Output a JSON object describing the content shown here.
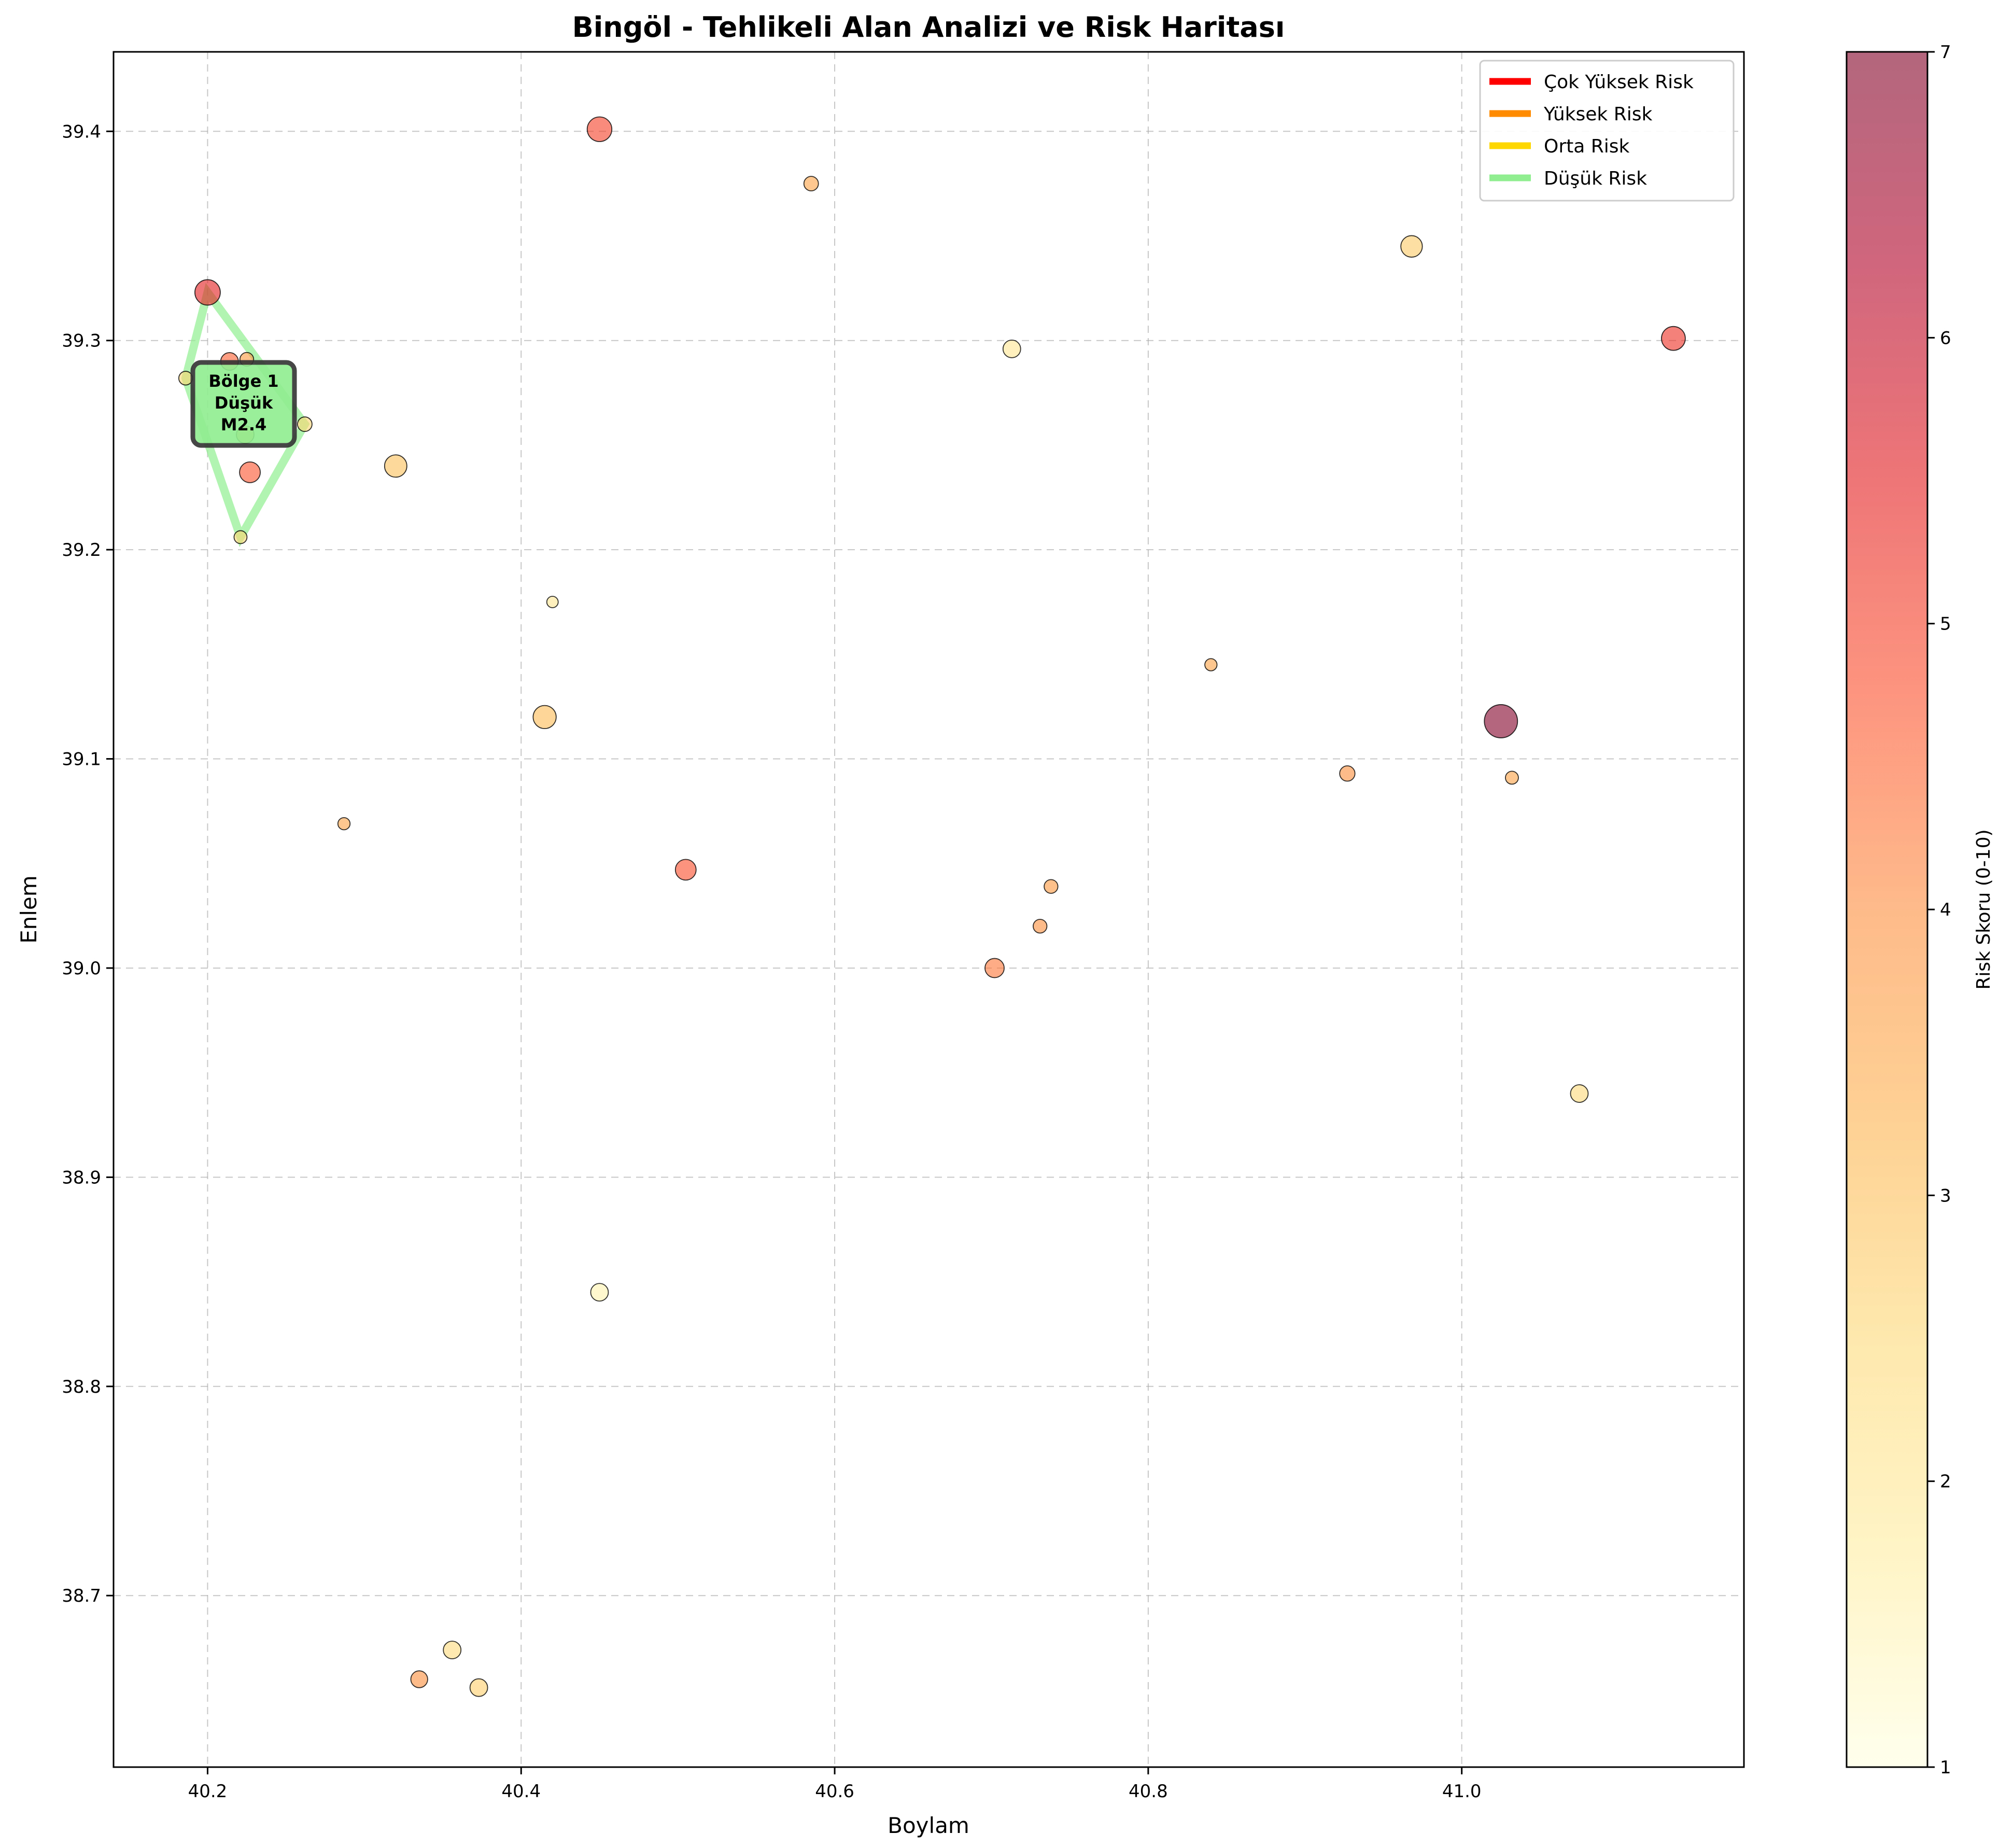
{
  "chart_data": {
    "type": "scatter",
    "title": "Bingöl - Tehlikeli Alan Analizi ve Risk Haritası",
    "xlabel": "Boylam",
    "ylabel": "Enlem",
    "xlim": [
      40.14,
      41.18
    ],
    "ylim": [
      38.618,
      39.438
    ],
    "xticks": [
      "40.2",
      "40.4",
      "40.6",
      "40.8",
      "41.0"
    ],
    "yticks": [
      "38.7",
      "38.8",
      "38.9",
      "39.0",
      "39.1",
      "39.2",
      "39.3",
      "39.4"
    ],
    "grid": true,
    "colorbar": {
      "label": "Risk Skoru (0-10)",
      "range": [
        1,
        7
      ],
      "ticks": [
        "1",
        "2",
        "3",
        "4",
        "5",
        "6",
        "7"
      ],
      "colormap": [
        "#ffffe0",
        "#ffeda0",
        "#fed976",
        "#feb24c",
        "#fd8d3c",
        "#fc4e2a",
        "#e31a1c",
        "#b10026",
        "#800026"
      ]
    },
    "legend": {
      "placement": "top-right",
      "entries": [
        {
          "label": "Çok Yüksek Risk",
          "color": "#ff0000"
        },
        {
          "label": "Yüksek Risk",
          "color": "#ff8c00"
        },
        {
          "label": "Orta Risk",
          "color": "#ffd700"
        },
        {
          "label": "Düşük Risk",
          "color": "#90ee90"
        }
      ]
    },
    "zone": {
      "label": [
        "Bölge 1",
        "Düşük",
        "M2.4"
      ],
      "color": "#90ee90",
      "polygon": [
        [
          40.2,
          39.323
        ],
        [
          40.262,
          39.26
        ],
        [
          40.221,
          39.206
        ],
        [
          40.186,
          39.282
        ]
      ]
    },
    "points": [
      {
        "x": 40.45,
        "y": 39.401,
        "risk": 5.0,
        "mag": 2.9
      },
      {
        "x": 40.585,
        "y": 39.375,
        "risk": 3.6,
        "mag": 1.6
      },
      {
        "x": 40.968,
        "y": 39.345,
        "risk": 2.8,
        "mag": 2.5
      },
      {
        "x": 40.2,
        "y": 39.323,
        "risk": 5.5,
        "mag": 3.0
      },
      {
        "x": 40.713,
        "y": 39.296,
        "risk": 2.0,
        "mag": 2.0
      },
      {
        "x": 41.135,
        "y": 39.301,
        "risk": 5.2,
        "mag": 2.8
      },
      {
        "x": 40.214,
        "y": 39.29,
        "risk": 4.6,
        "mag": 2.0
      },
      {
        "x": 40.225,
        "y": 39.291,
        "risk": 3.8,
        "mag": 1.5
      },
      {
        "x": 40.186,
        "y": 39.282,
        "risk": 2.6,
        "mag": 1.5
      },
      {
        "x": 40.262,
        "y": 39.26,
        "risk": 2.6,
        "mag": 1.6
      },
      {
        "x": 40.224,
        "y": 39.255,
        "risk": 3.8,
        "mag": 2.0
      },
      {
        "x": 40.227,
        "y": 39.237,
        "risk": 4.7,
        "mag": 2.4
      },
      {
        "x": 40.32,
        "y": 39.24,
        "risk": 3.0,
        "mag": 2.6
      },
      {
        "x": 40.221,
        "y": 39.206,
        "risk": 2.6,
        "mag": 1.4
      },
      {
        "x": 40.42,
        "y": 39.175,
        "risk": 2.0,
        "mag": 1.2
      },
      {
        "x": 40.84,
        "y": 39.145,
        "risk": 3.6,
        "mag": 1.3
      },
      {
        "x": 40.415,
        "y": 39.12,
        "risk": 3.1,
        "mag": 2.7
      },
      {
        "x": 41.025,
        "y": 39.118,
        "risk": 7.0,
        "mag": 4.0
      },
      {
        "x": 40.927,
        "y": 39.093,
        "risk": 4.0,
        "mag": 1.7
      },
      {
        "x": 41.032,
        "y": 39.091,
        "risk": 3.6,
        "mag": 1.4
      },
      {
        "x": 40.287,
        "y": 39.069,
        "risk": 3.6,
        "mag": 1.3
      },
      {
        "x": 40.505,
        "y": 39.047,
        "risk": 4.8,
        "mag": 2.4
      },
      {
        "x": 40.738,
        "y": 39.039,
        "risk": 3.8,
        "mag": 1.5
      },
      {
        "x": 40.731,
        "y": 39.02,
        "risk": 4.0,
        "mag": 1.5
      },
      {
        "x": 40.702,
        "y": 39.0,
        "risk": 4.3,
        "mag": 2.2
      },
      {
        "x": 41.075,
        "y": 38.94,
        "risk": 2.5,
        "mag": 2.0
      },
      {
        "x": 40.45,
        "y": 38.845,
        "risk": 1.6,
        "mag": 2.0
      },
      {
        "x": 40.356,
        "y": 38.674,
        "risk": 2.4,
        "mag": 2.0
      },
      {
        "x": 40.335,
        "y": 38.66,
        "risk": 4.0,
        "mag": 1.9
      },
      {
        "x": 40.373,
        "y": 38.656,
        "risk": 2.7,
        "mag": 2.0
      }
    ]
  }
}
